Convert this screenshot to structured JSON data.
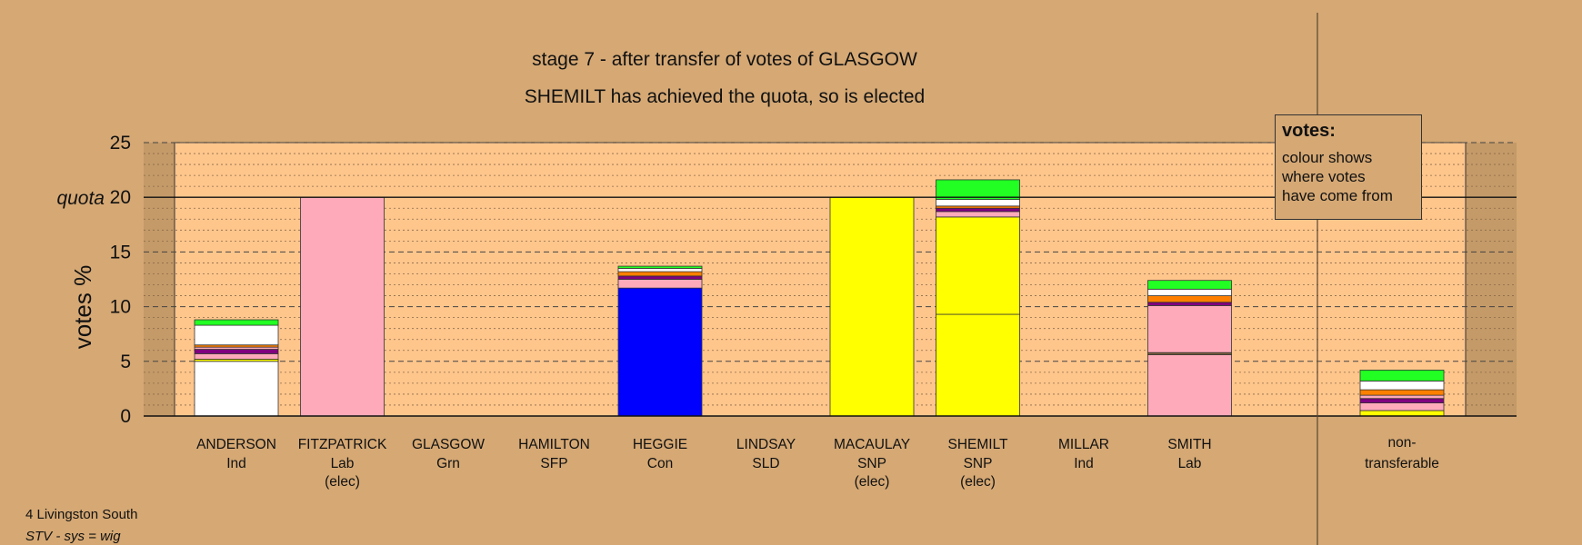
{
  "chart_data": {
    "type": "bar",
    "stacked": true,
    "title": "stage 7 - after transfer of votes of GLASGOW",
    "subtitle": "SHEMILT has achieved the quota, so is elected",
    "ylabel": "votes %",
    "ylim": [
      0,
      25
    ],
    "yticks": [
      "0",
      "5",
      "10",
      "15",
      "20",
      "25"
    ],
    "quota": 20,
    "quota_label": "quota",
    "grid": true,
    "candidates": [
      {
        "name": "ANDERSON",
        "party": "Ind",
        "status": "",
        "segments": [
          {
            "color": "#ffffff",
            "value": 5.0
          },
          {
            "color": "#ffff00",
            "value": 0.2
          },
          {
            "color": "#ffaabb",
            "value": 0.5
          },
          {
            "color": "#800080",
            "value": 0.4
          },
          {
            "color": "#ffaabb",
            "value": 0.2
          },
          {
            "color": "#ff8000",
            "value": 0.2
          },
          {
            "color": "#ffffff",
            "value": 1.8
          },
          {
            "color": "#22ff22",
            "value": 0.5
          }
        ]
      },
      {
        "name": "FITZPATRICK",
        "party": "Lab",
        "status": "(elec)",
        "segments": [
          {
            "color": "#ffaabb",
            "value": 20.0
          }
        ]
      },
      {
        "name": "GLASGOW",
        "party": "Grn",
        "status": "",
        "segments": []
      },
      {
        "name": "HAMILTON",
        "party": "SFP",
        "status": "",
        "segments": []
      },
      {
        "name": "HEGGIE",
        "party": "Con",
        "status": "",
        "segments": [
          {
            "color": "#0000ff",
            "value": 11.7
          },
          {
            "color": "#ffaabb",
            "value": 0.8
          },
          {
            "color": "#800080",
            "value": 0.3
          },
          {
            "color": "#ff8000",
            "value": 0.4
          },
          {
            "color": "#ffffff",
            "value": 0.3
          },
          {
            "color": "#22ff22",
            "value": 0.2
          }
        ]
      },
      {
        "name": "LINDSAY",
        "party": "SLD",
        "status": "",
        "segments": []
      },
      {
        "name": "MACAULAY",
        "party": "SNP",
        "status": "(elec)",
        "segments": [
          {
            "color": "#ffff00",
            "value": 20.0
          }
        ]
      },
      {
        "name": "SHEMILT",
        "party": "SNP",
        "status": "(elec)",
        "segments": [
          {
            "color": "#ffff00",
            "value": 9.3
          },
          {
            "color": "#ffff00",
            "value": 8.9
          },
          {
            "color": "#ffaabb",
            "value": 0.5
          },
          {
            "color": "#800080",
            "value": 0.3
          },
          {
            "color": "#ff8000",
            "value": 0.2
          },
          {
            "color": "#ffffff",
            "value": 0.6
          },
          {
            "color": "#22ff22",
            "value": 1.8
          }
        ]
      },
      {
        "name": "MILLAR",
        "party": "Ind",
        "status": "",
        "segments": []
      },
      {
        "name": "SMITH",
        "party": "Lab",
        "status": "",
        "segments": [
          {
            "color": "#ffaabb",
            "value": 5.6
          },
          {
            "color": "#806040",
            "value": 0.2
          },
          {
            "color": "#ffaabb",
            "value": 4.3
          },
          {
            "color": "#800080",
            "value": 0.3
          },
          {
            "color": "#ff8000",
            "value": 0.6
          },
          {
            "color": "#ffffff",
            "value": 0.6
          },
          {
            "color": "#22ff22",
            "value": 0.8
          }
        ]
      }
    ],
    "nontransferable": {
      "name": "non-",
      "name2": "transferable",
      "segments": [
        {
          "color": "#ffff00",
          "value": 0.5
        },
        {
          "color": "#ffaabb",
          "value": 0.7
        },
        {
          "color": "#800080",
          "value": 0.4
        },
        {
          "color": "#ffaabb",
          "value": 0.3
        },
        {
          "color": "#ff8000",
          "value": 0.5
        },
        {
          "color": "#ffffff",
          "value": 0.8
        },
        {
          "color": "#22ff22",
          "value": 1.0
        }
      ]
    },
    "colors": {
      "background": "#d5a874",
      "plot": "#ffc68c",
      "shade": "#c49a68"
    }
  },
  "legend": {
    "title": "votes:",
    "line1": "colour shows",
    "line2": "where votes",
    "line3": "have come from"
  },
  "footer": {
    "ward": "4 Livingston South",
    "system": "STV - sys = wig"
  }
}
